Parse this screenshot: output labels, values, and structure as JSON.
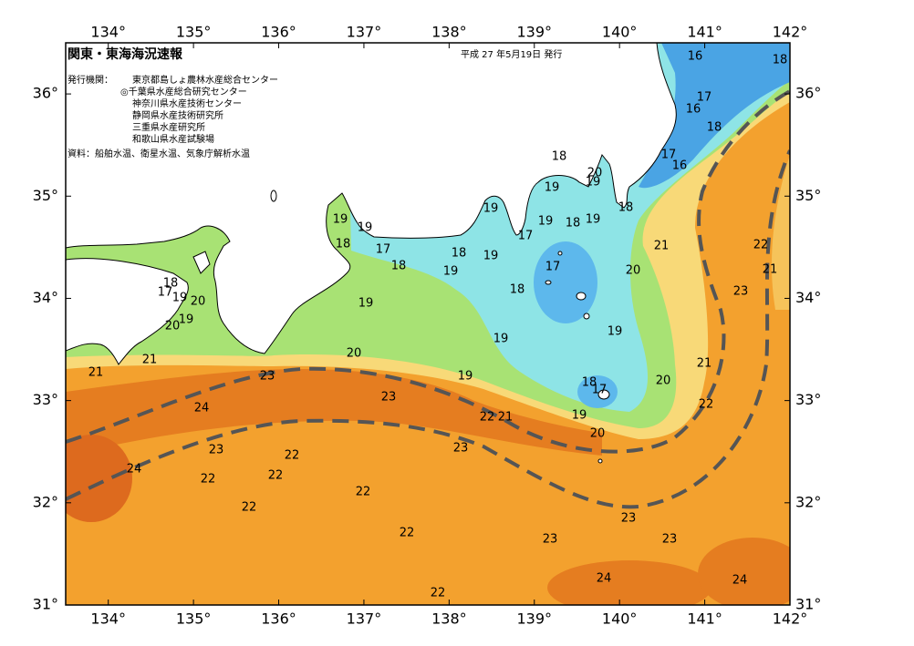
{
  "header": {
    "title": "関東・東海海況速報",
    "date": "平成 27 年5月19日 発行",
    "issuer_label": "発行機関：",
    "issuers": [
      "東京都島しょ農林水産総合センター",
      "◎千葉県水産総合研究センター",
      "神奈川県水産技術センター",
      "静岡県水産技術研究所",
      "三重県水産研究所",
      "和歌山県水産試験場"
    ],
    "source": "資料：船舶水温、衛星水温、気象庁解析水温"
  },
  "map": {
    "lonlim": [
      133.5,
      142
    ],
    "latlim": [
      31,
      36.5
    ],
    "lon_ticks": [
      {
        "value": 134,
        "label": "134°"
      },
      {
        "value": 135,
        "label": "135°"
      },
      {
        "value": 136,
        "label": "136°"
      },
      {
        "value": 137,
        "label": "137°"
      },
      {
        "value": 138,
        "label": "138°"
      },
      {
        "value": 139,
        "label": "139°"
      },
      {
        "value": 140,
        "label": "140°"
      },
      {
        "value": 141,
        "label": "141°"
      },
      {
        "value": 142,
        "label": "142°"
      }
    ],
    "lat_ticks": [
      {
        "value": 31,
        "label": "31°"
      },
      {
        "value": 32,
        "label": "32°"
      },
      {
        "value": 33,
        "label": "33°"
      },
      {
        "value": 34,
        "label": "34°"
      },
      {
        "value": 35,
        "label": "35°"
      },
      {
        "value": 36,
        "label": "36°"
      }
    ],
    "contour_labels": [
      16,
      18,
      17,
      16,
      18,
      17,
      16,
      18,
      20,
      19,
      19,
      18,
      19,
      19,
      19,
      18,
      19,
      19,
      17,
      18,
      17,
      21,
      22,
      18,
      19,
      18,
      19,
      17,
      21,
      20,
      18,
      23,
      18,
      17,
      19,
      20,
      19,
      20,
      19,
      19,
      19,
      20,
      21,
      21,
      21,
      19,
      23,
      20,
      18,
      17,
      23,
      24,
      22,
      22,
      21,
      19,
      20,
      23,
      23,
      22,
      24,
      22,
      22,
      22,
      22,
      23,
      22,
      23,
      23,
      24,
      24,
      22
    ]
  }
}
